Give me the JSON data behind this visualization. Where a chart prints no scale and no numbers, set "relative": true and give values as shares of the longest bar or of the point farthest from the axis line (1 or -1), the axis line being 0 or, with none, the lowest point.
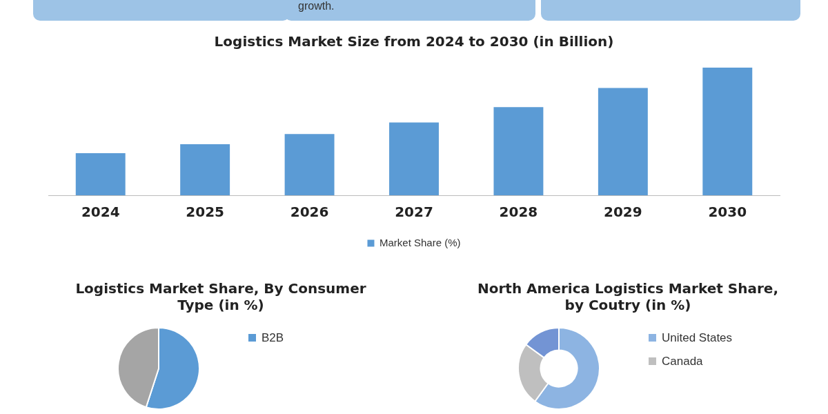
{
  "chart_data": [
    {
      "type": "bar",
      "title": "Logistics Market Size from 2024 to 2030 (in Billion)",
      "categories": [
        "2024",
        "2025",
        "2026",
        "2027",
        "2028",
        "2029",
        "2030"
      ],
      "relative": true,
      "legend": "bottom",
      "annotations": [
        "growth."
      ],
      "series": [
        {
          "name": "Market Share (%)",
          "color": "#5b9bd5",
          "values": [
            0.33,
            0.4,
            0.48,
            0.57,
            0.69,
            0.84,
            1
          ]
        }
      ]
    },
    {
      "type": "pie",
      "title": "Logistics Market Share, By Consumer Type (in %)",
      "categories": [
        "B2B",
        null
      ],
      "values": [
        55,
        45
      ],
      "colors": [
        "#5b9bd5",
        "#a5a5a5"
      ],
      "legend": "right"
    },
    {
      "type": "donut",
      "title": "North America Logistics Market Share, by Coutry (in %)",
      "categories": [
        "United States",
        "Canada",
        null
      ],
      "values": [
        60,
        25,
        15
      ],
      "colors": [
        "#8db4e2",
        "#bfbfbf",
        "#7394d4"
      ],
      "legend": "right"
    }
  ]
}
